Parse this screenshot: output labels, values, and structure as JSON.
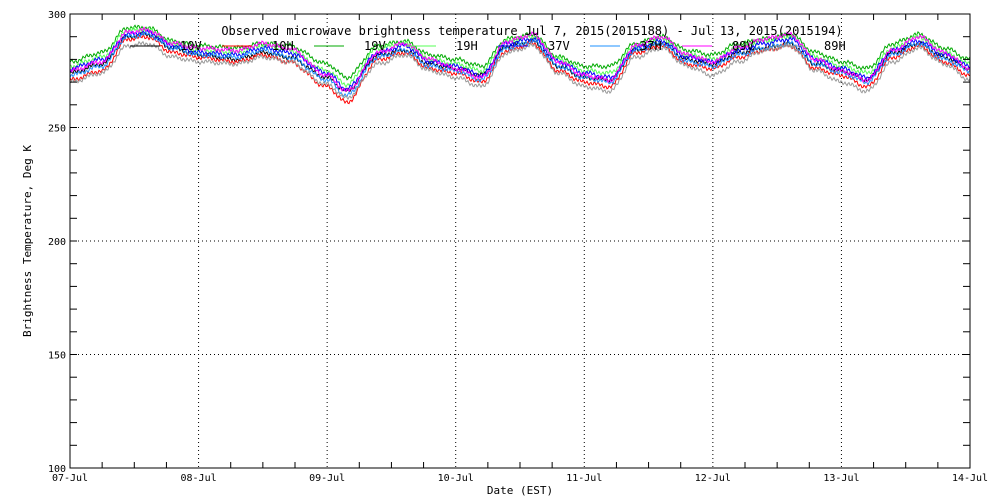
{
  "chart_data": {
    "type": "line",
    "title": "Observed microwave brightness temperature Jul  7, 2015(2015188) - Jul 13, 2015(2015194)",
    "xlabel": "Date (EST)",
    "ylabel": "Brightness Temperature, Deg K",
    "ylim": [
      100,
      300
    ],
    "xlim": [
      "07-Jul",
      "14-Jul"
    ],
    "y_ticks": [
      100,
      150,
      200,
      250,
      300
    ],
    "x_ticks": [
      "07-Jul",
      "08-Jul",
      "09-Jul",
      "10-Jul",
      "11-Jul",
      "12-Jul",
      "13-Jul",
      "14-Jul"
    ],
    "grid": true,
    "legend_placement": "top",
    "x": [
      7.0,
      7.25,
      7.45,
      7.6,
      7.8,
      8.0,
      8.3,
      8.5,
      8.7,
      9.0,
      9.15,
      9.4,
      9.6,
      9.8,
      10.0,
      10.2,
      10.4,
      10.6,
      10.8,
      11.0,
      11.2,
      11.4,
      11.6,
      11.8,
      12.0,
      12.2,
      12.4,
      12.6,
      12.8,
      13.0,
      13.2,
      13.4,
      13.6,
      13.8,
      14.0
    ],
    "series": [
      {
        "name": "10V",
        "color": "#000000",
        "values": [
          274,
          278,
          290,
          291,
          285,
          282,
          280,
          283,
          281,
          272,
          266,
          282,
          284,
          278,
          276,
          273,
          286,
          288,
          277,
          272,
          271,
          284,
          287,
          280,
          278,
          283,
          285,
          287,
          278,
          275,
          271,
          283,
          287,
          281,
          276
        ]
      },
      {
        "name": "10H",
        "color": "#ff0000",
        "values": [
          271,
          275,
          289,
          290,
          283,
          281,
          279,
          282,
          279,
          268,
          261,
          280,
          283,
          276,
          274,
          270,
          284,
          287,
          275,
          270,
          268,
          283,
          286,
          278,
          276,
          281,
          284,
          286,
          276,
          273,
          268,
          281,
          286,
          279,
          273
        ]
      },
      {
        "name": "19V",
        "color": "#00aa00",
        "values": [
          279,
          283,
          294,
          294,
          288,
          286,
          285,
          287,
          286,
          278,
          272,
          286,
          288,
          282,
          280,
          277,
          289,
          291,
          281,
          277,
          277,
          287,
          290,
          284,
          282,
          287,
          289,
          291,
          283,
          279,
          276,
          287,
          291,
          285,
          280
        ]
      },
      {
        "name": "19H",
        "color": "#55ff55",
        "values": [
          277,
          281,
          293,
          293,
          287,
          284,
          283,
          286,
          284,
          275,
          269,
          285,
          287,
          280,
          278,
          275,
          288,
          290,
          280,
          275,
          274,
          286,
          289,
          282,
          280,
          285,
          288,
          290,
          281,
          277,
          274,
          285,
          290,
          283,
          278
        ]
      },
      {
        "name": "37V",
        "color": "#0000ff",
        "values": [
          276,
          280,
          291,
          292,
          286,
          283,
          282,
          285,
          283,
          274,
          267,
          283,
          286,
          279,
          277,
          273,
          287,
          289,
          279,
          274,
          272,
          285,
          288,
          281,
          279,
          284,
          287,
          289,
          280,
          276,
          272,
          284,
          288,
          282,
          277
        ]
      },
      {
        "name": "37H",
        "color": "#1e90ff",
        "values": [
          273,
          277,
          290,
          291,
          285,
          282,
          281,
          284,
          281,
          271,
          264,
          281,
          284,
          277,
          275,
          271,
          285,
          288,
          277,
          272,
          270,
          284,
          287,
          279,
          277,
          282,
          285,
          287,
          278,
          274,
          270,
          282,
          287,
          280,
          275
        ]
      },
      {
        "name": "89V",
        "color": "#ff00ff",
        "values": [
          275,
          279,
          292,
          293,
          287,
          285,
          284,
          287,
          285,
          273,
          266,
          283,
          287,
          280,
          276,
          272,
          288,
          291,
          279,
          273,
          271,
          286,
          290,
          282,
          279,
          285,
          289,
          291,
          280,
          275,
          271,
          284,
          290,
          283,
          276
        ]
      },
      {
        "name": "89H",
        "color": "#999999",
        "values": [
          270,
          274,
          286,
          287,
          281,
          279,
          278,
          281,
          279,
          269,
          263,
          278,
          282,
          275,
          272,
          268,
          283,
          286,
          274,
          268,
          266,
          281,
          285,
          277,
          273,
          279,
          284,
          286,
          275,
          270,
          266,
          279,
          285,
          278,
          271
        ]
      }
    ]
  }
}
